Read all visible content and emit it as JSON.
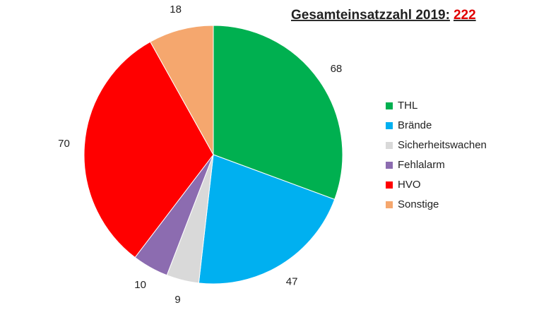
{
  "chart_data": {
    "type": "pie",
    "title": "Gesamteinsatzzahl 2019:",
    "total": 222,
    "total_color": "#e00000",
    "categories": [
      "THL",
      "Brände",
      "Sicherheitswachen",
      "Fehlalarm",
      "HVO",
      "Sonstige"
    ],
    "values": [
      68,
      47,
      9,
      10,
      70,
      18
    ],
    "colors": [
      "#00b050",
      "#00b0f0",
      "#d9d9d9",
      "#8c6cb0",
      "#ff0000",
      "#f5a76e"
    ],
    "legend": "right"
  }
}
